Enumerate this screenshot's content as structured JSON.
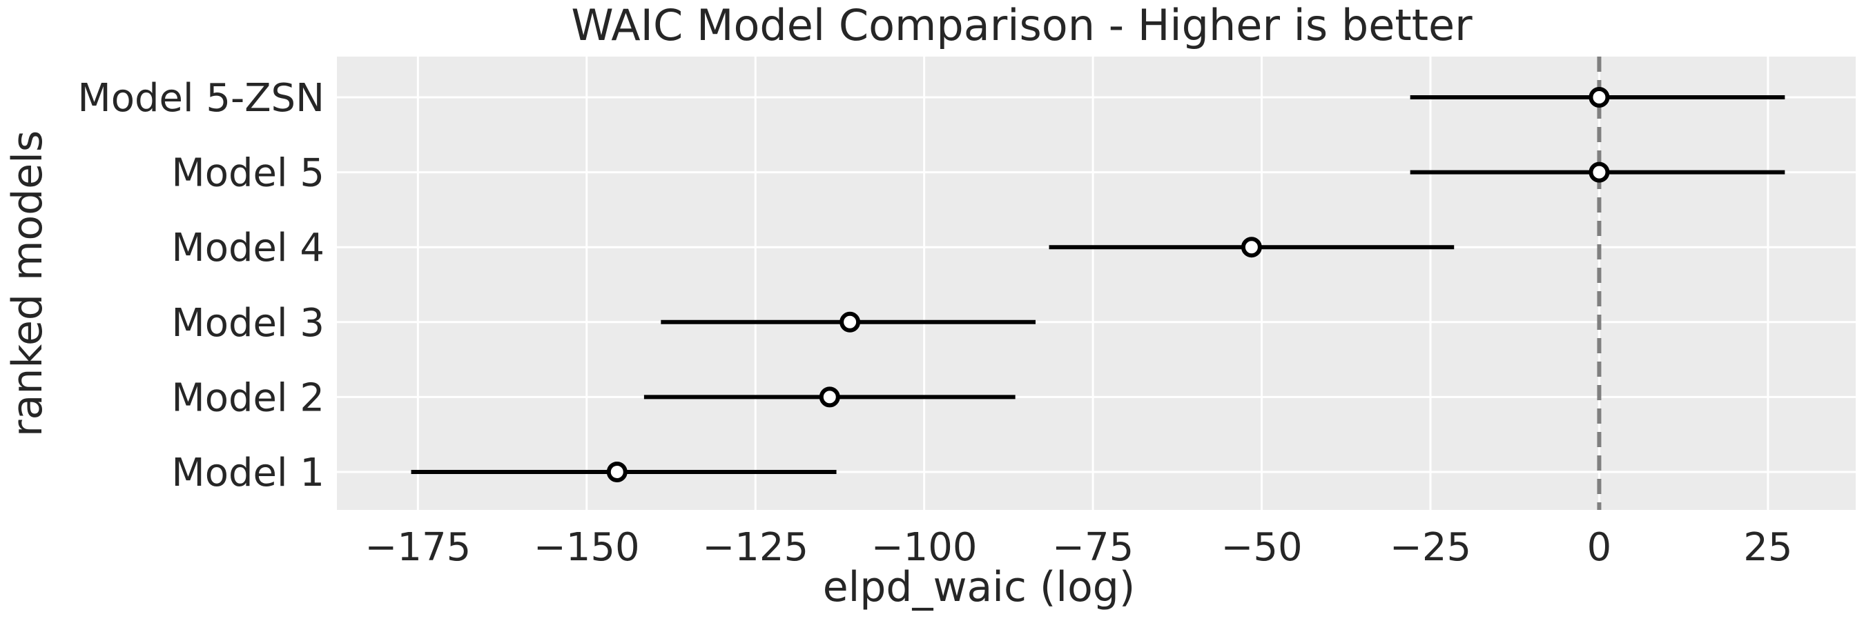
{
  "chart_data": {
    "type": "forest",
    "title": "WAIC Model Comparison - Higher is better",
    "xlabel": "elpd_waic (log)",
    "ylabel": "ranked models",
    "xlim": [
      -187,
      38
    ],
    "xticks": [
      -175,
      -150,
      -125,
      -100,
      -75,
      -50,
      -25,
      0,
      25
    ],
    "xtick_labels": [
      "−175",
      "−150",
      "−125",
      "−100",
      "−75",
      "−50",
      "−25",
      "0",
      "25"
    ],
    "categories": [
      "Model 5-ZSN",
      "Model 5",
      "Model 4",
      "Model 3",
      "Model 2",
      "Model 1"
    ],
    "estimates": [
      0,
      0,
      -51.5,
      -111,
      -114,
      -145.5
    ],
    "lower": [
      -28,
      -28,
      -81.5,
      -139,
      -141.5,
      -176
    ],
    "upper": [
      27.5,
      27.5,
      -21.5,
      -83.5,
      -86.5,
      -113
    ],
    "reference_line": 0,
    "grid": true,
    "colors": {
      "background": "#ebebeb",
      "grid": "#ffffff",
      "interval": "#000000",
      "marker_face": "#ffffff",
      "marker_edge": "#000000",
      "reference": "#7f7f7f",
      "text": "#262626"
    }
  }
}
